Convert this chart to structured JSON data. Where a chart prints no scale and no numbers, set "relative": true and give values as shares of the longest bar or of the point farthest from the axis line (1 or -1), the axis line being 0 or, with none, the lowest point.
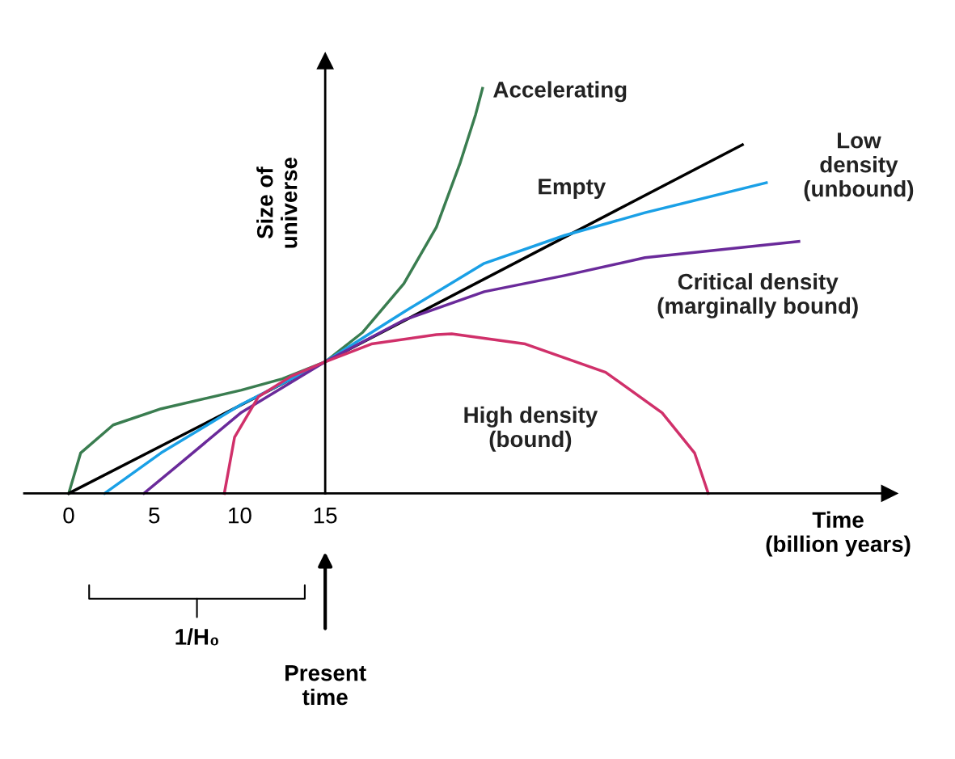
{
  "chart_data": {
    "type": "line",
    "relative": true,
    "xlabel": "Time\n(billion years)",
    "ylabel": "Size of\nuniverse",
    "xlim": [
      -2.6,
      48
    ],
    "xticks": [
      0,
      5,
      10,
      15
    ],
    "legend": false,
    "series": [
      {
        "name": "Accelerating",
        "color": "#3a7d50",
        "x": [
          0,
          0.7,
          2.6,
          5.4,
          10.1,
          12.5,
          15,
          17.2,
          19.6,
          21.5,
          22.9,
          23.8,
          24.2
        ],
        "values": [
          0,
          0.1,
          0.169,
          0.209,
          0.255,
          0.283,
          0.325,
          0.398,
          0.518,
          0.657,
          0.817,
          0.936,
          1.0
        ]
      },
      {
        "name": "Empty",
        "color": "#000000",
        "x": [
          0,
          15,
          39.4
        ],
        "values": [
          0,
          0.325,
          0.861
        ]
      },
      {
        "name": "Low\ndensity\n(unbound)",
        "color": "#1aa0e6",
        "x": [
          2.1,
          5.4,
          10.1,
          15,
          19.6,
          24.3,
          29,
          33.7,
          40.8
        ],
        "values": [
          0,
          0.1,
          0.22,
          0.325,
          0.448,
          0.568,
          0.637,
          0.693,
          0.767
        ]
      },
      {
        "name": "Critical density\n(marginally bound)",
        "color": "#6a2a9a",
        "x": [
          4.4,
          6.4,
          10.1,
          15,
          19.6,
          24.3,
          29,
          33.7,
          42.7
        ],
        "values": [
          0,
          0.07,
          0.2,
          0.325,
          0.428,
          0.498,
          0.538,
          0.582,
          0.622
        ]
      },
      {
        "name": "High density\n(bound)",
        "color": "#d0306a",
        "x": [
          9.1,
          9.7,
          11.1,
          13,
          15,
          17.7,
          21.5,
          22.4,
          26.7,
          31.4,
          34.7,
          36.6,
          37.4
        ],
        "values": [
          0,
          0.139,
          0.239,
          0.289,
          0.325,
          0.369,
          0.392,
          0.394,
          0.369,
          0.299,
          0.199,
          0.1,
          0
        ]
      }
    ],
    "annotations": [
      "1/H₀",
      "Present\ntime"
    ]
  }
}
